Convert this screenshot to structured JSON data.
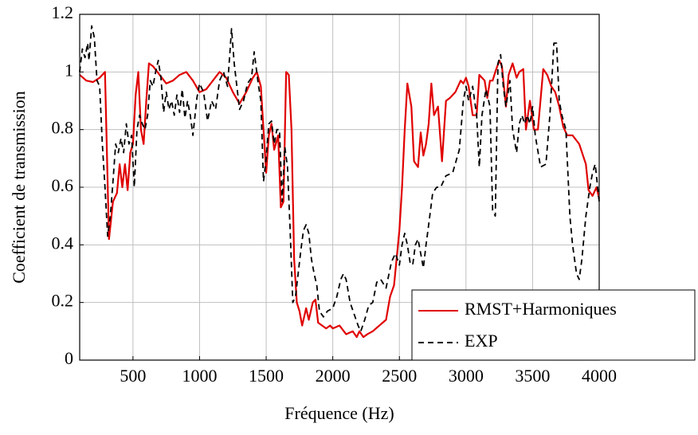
{
  "chart_data": {
    "type": "line",
    "xlabel": "Fréquence (Hz)",
    "ylabel": "Coefficient de transmission",
    "xlim": [
      100,
      4000
    ],
    "ylim": [
      0,
      1.2
    ],
    "xticks": [
      500,
      1000,
      1500,
      2000,
      2500,
      3000,
      3500,
      4000
    ],
    "yticks": [
      0,
      0.2,
      0.4,
      0.6,
      0.8,
      1,
      1.2
    ],
    "grid": true,
    "legend": "lower right",
    "series": [
      {
        "name": "RMST+Harmoniques",
        "color": "#e00000",
        "dash": "solid",
        "x": [
          100,
          150,
          200,
          250,
          290,
          320,
          350,
          380,
          400,
          420,
          440,
          460,
          480,
          500,
          520,
          540,
          560,
          580,
          600,
          620,
          650,
          700,
          750,
          800,
          850,
          900,
          950,
          1000,
          1050,
          1100,
          1150,
          1200,
          1250,
          1300,
          1350,
          1400,
          1430,
          1460,
          1480,
          1500,
          1520,
          1540,
          1560,
          1590,
          1610,
          1630,
          1650,
          1670,
          1690,
          1710,
          1730,
          1750,
          1770,
          1800,
          1820,
          1850,
          1870,
          1890,
          1920,
          1950,
          1980,
          2000,
          2050,
          2100,
          2150,
          2180,
          2200,
          2230,
          2260,
          2300,
          2350,
          2400,
          2430,
          2460,
          2500,
          2520,
          2540,
          2560,
          2590,
          2610,
          2640,
          2660,
          2680,
          2700,
          2720,
          2740,
          2760,
          2790,
          2820,
          2850,
          2880,
          2920,
          2960,
          2980,
          3000,
          3020,
          3050,
          3080,
          3100,
          3140,
          3160,
          3180,
          3200,
          3220,
          3250,
          3270,
          3300,
          3320,
          3350,
          3380,
          3400,
          3430,
          3450,
          3480,
          3510,
          3540,
          3580,
          3610,
          3640,
          3670,
          3700,
          3730,
          3760,
          3800,
          3850,
          3900,
          3920,
          3950,
          3980,
          4000
        ],
        "values": [
          0.99,
          0.97,
          0.965,
          0.98,
          1.0,
          0.42,
          0.55,
          0.58,
          0.68,
          0.6,
          0.68,
          0.59,
          0.72,
          0.75,
          0.92,
          1.0,
          0.8,
          0.75,
          0.9,
          1.03,
          1.02,
          0.99,
          0.96,
          0.97,
          0.99,
          1.0,
          0.97,
          0.93,
          0.94,
          0.97,
          1.0,
          0.98,
          0.93,
          0.89,
          0.93,
          0.98,
          1.0,
          0.95,
          0.8,
          0.65,
          0.78,
          0.82,
          0.73,
          0.78,
          0.53,
          0.55,
          1.0,
          0.99,
          0.8,
          0.35,
          0.2,
          0.17,
          0.12,
          0.18,
          0.14,
          0.2,
          0.21,
          0.13,
          0.12,
          0.11,
          0.12,
          0.11,
          0.12,
          0.09,
          0.1,
          0.08,
          0.1,
          0.08,
          0.09,
          0.1,
          0.12,
          0.14,
          0.22,
          0.26,
          0.45,
          0.6,
          0.8,
          0.96,
          0.88,
          0.69,
          0.67,
          0.79,
          0.71,
          0.75,
          0.82,
          0.96,
          0.85,
          0.88,
          0.69,
          0.9,
          0.91,
          0.93,
          0.97,
          0.96,
          0.98,
          0.95,
          0.85,
          0.85,
          0.99,
          0.97,
          0.91,
          0.97,
          0.97,
          1.0,
          1.04,
          1.02,
          0.88,
          0.99,
          1.03,
          0.98,
          1.0,
          1.01,
          0.8,
          0.9,
          0.8,
          0.8,
          1.01,
          0.99,
          0.95,
          0.93,
          0.88,
          0.81,
          0.78,
          0.78,
          0.75,
          0.68,
          0.59,
          0.57,
          0.6,
          0.56
        ]
      },
      {
        "name": "EXP",
        "color": "#000000",
        "dash": "dashed",
        "x": [
          100,
          120,
          140,
          160,
          170,
          190,
          210,
          230,
          250,
          270,
          290,
          310,
          330,
          350,
          370,
          390,
          410,
          430,
          450,
          470,
          490,
          510,
          530,
          550,
          570,
          590,
          610,
          630,
          650,
          670,
          690,
          710,
          730,
          750,
          770,
          790,
          810,
          830,
          850,
          870,
          890,
          910,
          930,
          950,
          980,
          1000,
          1030,
          1060,
          1090,
          1120,
          1150,
          1180,
          1210,
          1240,
          1260,
          1280,
          1300,
          1330,
          1360,
          1390,
          1410,
          1440,
          1460,
          1480,
          1500,
          1520,
          1540,
          1560,
          1580,
          1600,
          1620,
          1640,
          1660,
          1680,
          1700,
          1720,
          1740,
          1760,
          1780,
          1800,
          1820,
          1840,
          1860,
          1880,
          1900,
          1930,
          1960,
          2000,
          2030,
          2060,
          2080,
          2100,
          2130,
          2160,
          2190,
          2210,
          2240,
          2270,
          2300,
          2330,
          2360,
          2400,
          2440,
          2470,
          2500,
          2520,
          2540,
          2560,
          2580,
          2600,
          2620,
          2640,
          2660,
          2680,
          2700,
          2720,
          2750,
          2780,
          2810,
          2850,
          2900,
          2950,
          2980,
          3000,
          3020,
          3050,
          3080,
          3100,
          3120,
          3150,
          3180,
          3200,
          3220,
          3240,
          3260,
          3280,
          3300,
          3330,
          3350,
          3380,
          3400,
          3420,
          3440,
          3460,
          3480,
          3500,
          3520,
          3560,
          3600,
          3630,
          3660,
          3680,
          3700,
          3720,
          3750,
          3780,
          3800,
          3830,
          3850,
          3870,
          3900,
          3930,
          3950,
          3970,
          4000
        ],
        "values": [
          1.0,
          1.08,
          1.05,
          1.1,
          1.04,
          1.16,
          1.12,
          0.97,
          0.95,
          0.75,
          0.6,
          0.43,
          0.5,
          0.62,
          0.75,
          0.72,
          0.77,
          0.72,
          0.82,
          0.75,
          0.78,
          0.6,
          0.8,
          0.85,
          0.82,
          0.8,
          0.85,
          0.97,
          0.95,
          1.0,
          1.04,
          0.98,
          0.86,
          0.93,
          0.87,
          0.9,
          0.85,
          0.92,
          0.86,
          0.94,
          0.84,
          0.9,
          0.85,
          0.78,
          0.91,
          0.96,
          0.93,
          0.83,
          0.9,
          0.87,
          0.97,
          1.0,
          0.95,
          1.15,
          1.03,
          0.95,
          0.87,
          0.9,
          0.96,
          0.98,
          1.07,
          0.96,
          0.9,
          0.62,
          0.7,
          0.82,
          0.83,
          0.75,
          0.8,
          0.8,
          0.55,
          0.74,
          0.67,
          0.45,
          0.2,
          0.22,
          0.3,
          0.38,
          0.45,
          0.47,
          0.44,
          0.35,
          0.3,
          0.26,
          0.17,
          0.15,
          0.17,
          0.18,
          0.22,
          0.28,
          0.3,
          0.28,
          0.2,
          0.16,
          0.12,
          0.1,
          0.14,
          0.19,
          0.2,
          0.27,
          0.28,
          0.25,
          0.34,
          0.37,
          0.33,
          0.4,
          0.44,
          0.4,
          0.34,
          0.33,
          0.4,
          0.42,
          0.37,
          0.32,
          0.4,
          0.47,
          0.58,
          0.6,
          0.6,
          0.64,
          0.65,
          0.73,
          0.9,
          0.95,
          0.9,
          0.95,
          0.85,
          0.67,
          0.85,
          0.94,
          0.88,
          0.52,
          0.5,
          1.03,
          1.06,
          0.95,
          0.88,
          0.97,
          0.8,
          0.72,
          0.82,
          0.85,
          0.82,
          0.85,
          0.82,
          0.88,
          0.78,
          0.67,
          0.68,
          0.85,
          1.1,
          1.1,
          0.9,
          0.85,
          0.8,
          0.5,
          0.4,
          0.3,
          0.28,
          0.35,
          0.5,
          0.6,
          0.65,
          0.68,
          0.55
        ]
      }
    ]
  }
}
